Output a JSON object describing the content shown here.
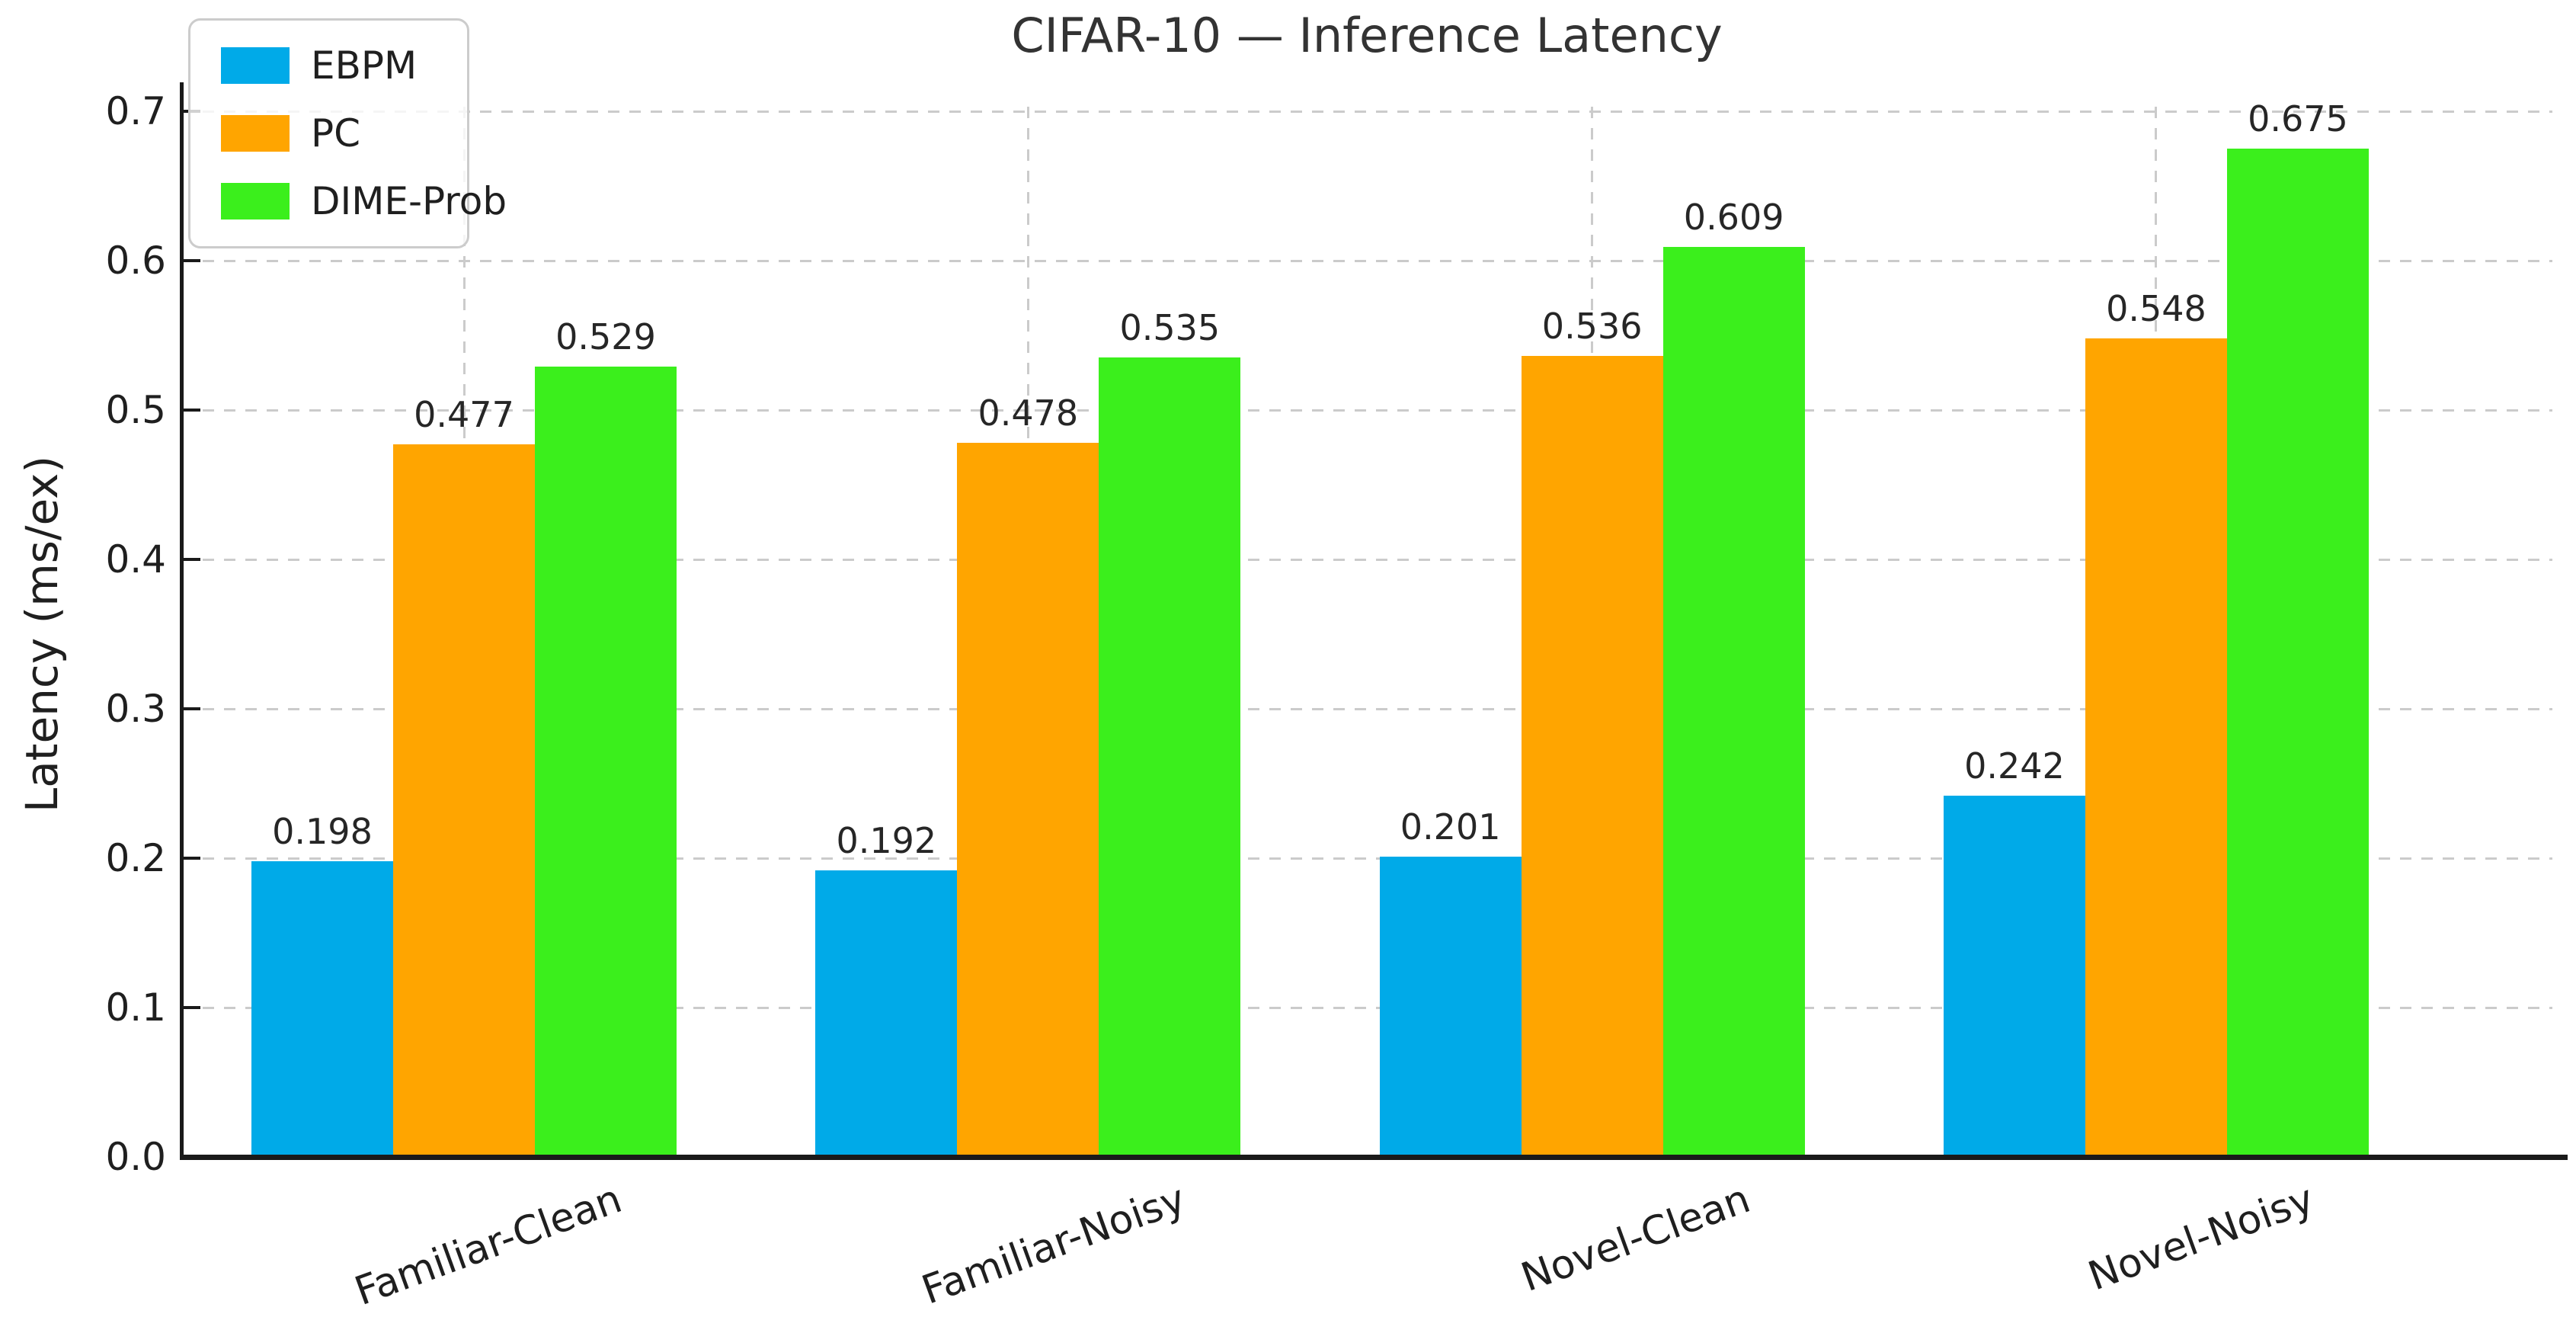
{
  "chart_data": {
    "type": "bar",
    "title": "CIFAR-10 — Inference Latency",
    "ylabel": "Latency (ms/ex)",
    "xlabel": "",
    "categories": [
      "Familiar-Clean",
      "Familiar-Noisy",
      "Novel-Clean",
      "Novel-Noisy"
    ],
    "series": [
      {
        "name": "EBPM",
        "color": "#00AAE8",
        "values": [
          0.198,
          0.192,
          0.201,
          0.242
        ]
      },
      {
        "name": "PC",
        "color": "#FFA500",
        "values": [
          0.477,
          0.478,
          0.536,
          0.548
        ]
      },
      {
        "name": "DIME-Prob",
        "color": "#3BEF1C",
        "values": [
          0.529,
          0.535,
          0.609,
          0.675
        ]
      }
    ],
    "value_label_format": "3-decimals",
    "ylim": [
      0.0,
      0.7
    ],
    "yticks": [
      0.0,
      0.1,
      0.2,
      0.3,
      0.4,
      0.5,
      0.6,
      0.7
    ],
    "ytick_labels": [
      "0.0",
      "0.1",
      "0.2",
      "0.3",
      "0.4",
      "0.5",
      "0.6",
      "0.7"
    ],
    "grid": "dashed",
    "legend_position": "upper-left"
  },
  "style": {
    "grid_color": "#cbcbcb",
    "axis_color": "#1a1a1a",
    "text_color": "#1f1f1f",
    "title_color": "#333333",
    "legend_border_color": "#cccccc"
  }
}
